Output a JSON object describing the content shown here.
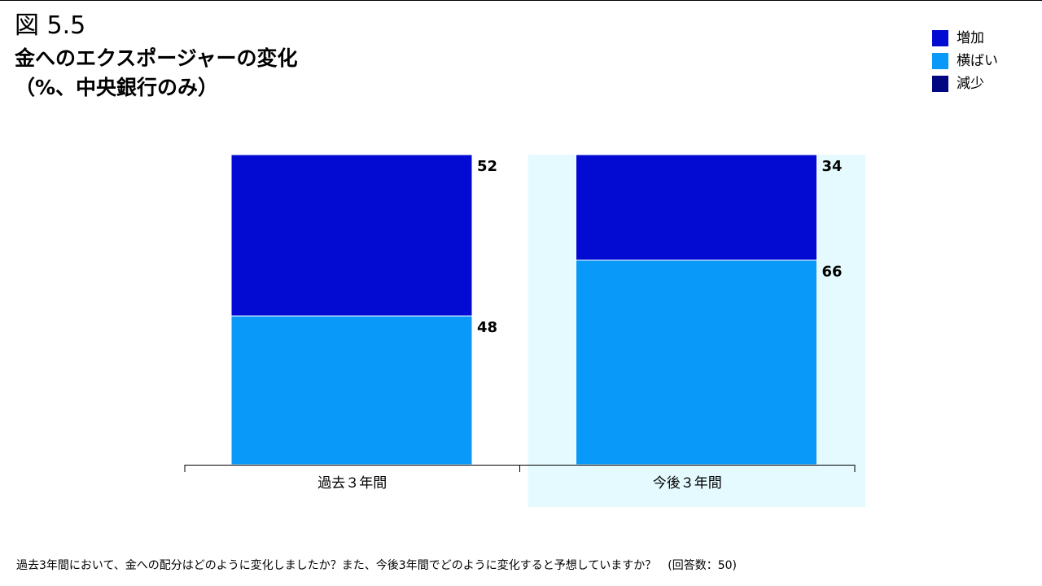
{
  "figure_label": "図 5.5",
  "title": "金へのエクスポージャーの変化",
  "subtitle": "（%、中央銀行のみ）",
  "legend": [
    {
      "label": "増加",
      "color": "#030BD3"
    },
    {
      "label": "横ばい",
      "color": "#0899F9"
    },
    {
      "label": "減少",
      "color": "#010780"
    }
  ],
  "footnote": "過去3年間において、金への配分はどのように変化しましたか？また、今後3年間でどのように変化すると予想していますか？　(回答数：50)",
  "chart_data": {
    "type": "bar",
    "stacked": true,
    "categories": [
      "過去３年間",
      "今後３年間"
    ],
    "series": [
      {
        "name": "横ばい",
        "values": [
          48,
          66
        ],
        "color": "#0899F9"
      },
      {
        "name": "増加",
        "values": [
          52,
          34
        ],
        "color": "#030BD3"
      },
      {
        "name": "減少",
        "values": [
          0,
          0
        ],
        "color": "#010780"
      }
    ],
    "ylim": [
      0,
      100
    ],
    "highlight_category": "今後３年間",
    "highlight_color": "#E4FAFF"
  }
}
